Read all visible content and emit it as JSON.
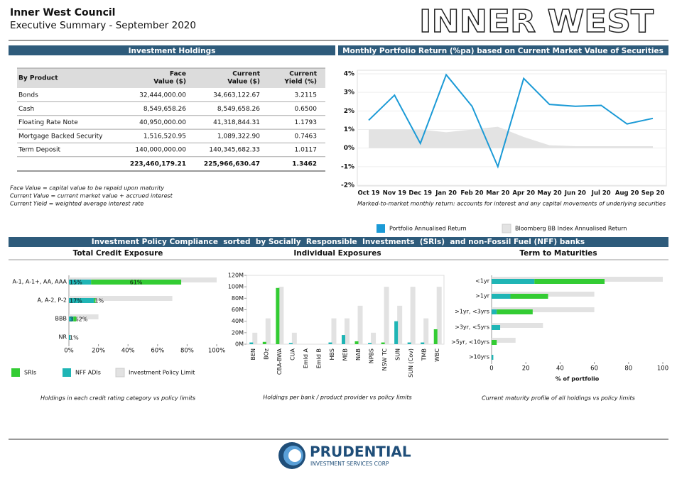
{
  "header": {
    "title": "Inner West Council",
    "subtitle": "Executive Summary - September 2020",
    "logo": "INNER WEST"
  },
  "table": {
    "title": "Investment Holdings",
    "columns": [
      [
        "By Product"
      ],
      [
        "Face",
        "Value ($)"
      ],
      [
        "Current",
        "Value ($)"
      ],
      [
        "Current",
        "Yield (%)"
      ]
    ],
    "rows": [
      [
        "Bonds",
        "32,444,000.00",
        "34,663,122.67",
        "3.2115"
      ],
      [
        "Cash",
        "8,549,658.26",
        "8,549,658.26",
        "0.6500"
      ],
      [
        "Floating Rate Note",
        "40,950,000.00",
        "41,318,844.31",
        "1.1793"
      ],
      [
        "Mortgage Backed Security",
        "1,516,520.95",
        "1,089,322.90",
        "0.7463"
      ],
      [
        "Term Deposit",
        "140,000,000.00",
        "140,345,682.33",
        "1.0117"
      ]
    ],
    "total": [
      "223,460,179.21",
      "225,966,630.47",
      "1.3462"
    ]
  },
  "notes": [
    "Face Value = capital value to be repaid upon maturity",
    "Current Value = current market value + accrued interest",
    "Current Yield = weighted average interest rate"
  ],
  "compliance_title": "Investment Policy Compliance  sorted  by Socially  Responsible  Investments  (SRIs)  and non-Fossil Fuel (NFF) banks",
  "chart_data": [
    {
      "type": "line",
      "title": "Monthly Portfolio Return (%pa) based on Current Market Value of Securities",
      "categories": [
        "Oct 19",
        "Nov 19",
        "Dec 19",
        "Jan 20",
        "Feb 20",
        "Mar 20",
        "Apr 20",
        "May 20",
        "Jun 20",
        "Jul 20",
        "Aug 20",
        "Sep 20"
      ],
      "series": [
        {
          "name": "Portfolio Annualised Return",
          "color": "#1b9ad6",
          "values": [
            1.5,
            2.85,
            0.25,
            3.95,
            2.25,
            -1.0,
            3.75,
            2.35,
            2.25,
            2.3,
            1.3,
            1.6
          ]
        },
        {
          "name": "Bloomberg BB Index Annualised Return",
          "color": "#e3e3e3",
          "type": "area",
          "values": [
            1.0,
            1.0,
            1.0,
            0.85,
            1.0,
            1.15,
            0.6,
            0.15,
            0.1,
            0.1,
            0.1,
            0.1
          ]
        }
      ],
      "ylim": [
        -2,
        4
      ],
      "yticks": [
        {
          "value": -2,
          "label": "-2%"
        },
        {
          "value": -1,
          "label": "-1%"
        },
        {
          "value": 0,
          "label": "0%"
        },
        {
          "value": 1,
          "label": "1%"
        },
        {
          "value": 2,
          "label": "2%"
        },
        {
          "value": 3,
          "label": "3%"
        },
        {
          "value": 4,
          "label": "4%"
        }
      ],
      "grid": true,
      "caption": "Marked-to-market monthly return: accounts for interest and any capital movements of underlying securities"
    },
    {
      "type": "bar",
      "orientation": "horizontal",
      "title": "Total Credit Exposure",
      "categories": [
        "A-1, A-1+, AA, AAA",
        "A, A-2, P-2",
        "BBB",
        "NR"
      ],
      "series": [
        {
          "name": "SRIs",
          "color": "#33cc33",
          "values": [
            61,
            1,
            2,
            null
          ],
          "value_labels": [
            "61%",
            "1%",
            "2%",
            null
          ]
        },
        {
          "name": "NFF ADIs",
          "color": "#1fb5b5",
          "values": [
            15,
            17,
            3,
            1
          ],
          "value_labels": [
            "15%",
            "17%",
            "3%",
            "1%"
          ]
        },
        {
          "name": "Investment Policy Limit",
          "color": "#e2e2e2",
          "role": "limit",
          "values": [
            100,
            70,
            20,
            null
          ]
        }
      ],
      "xlim": [
        0,
        100
      ],
      "xticks": [
        {
          "value": 0,
          "label": "0%"
        },
        {
          "value": 20,
          "label": "20%"
        },
        {
          "value": 40,
          "label": "40%"
        },
        {
          "value": 60,
          "label": "60%"
        },
        {
          "value": 80,
          "label": "80%"
        },
        {
          "value": 100,
          "label": "100%"
        }
      ],
      "caption": "Holdings in each credit rating category vs policy limits"
    },
    {
      "type": "bar",
      "orientation": "vertical",
      "title": "Individual Exposures",
      "categories": [
        "BEN",
        "BOz",
        "CBA-BWA",
        "CUA",
        "Emld A",
        "Emld B",
        "HBS",
        "MEB",
        "NAB",
        "NPBS",
        "NSW TC",
        "SUN",
        "SUN (Cov)",
        "TMB",
        "WBC"
      ],
      "series": [
        {
          "color": "#33cc33",
          "values": [
            null,
            4,
            98,
            null,
            null,
            null,
            null,
            null,
            5,
            null,
            3,
            null,
            null,
            null,
            26
          ]
        },
        {
          "color": "#1fb5b5",
          "values": [
            3,
            null,
            null,
            2,
            null,
            null,
            3,
            16,
            null,
            2,
            null,
            40,
            3,
            3,
            null
          ]
        },
        {
          "color": "#e2e2e2",
          "role": "limit",
          "values": [
            20,
            45,
            100,
            20,
            null,
            null,
            45,
            45,
            67,
            20,
            100,
            67,
            100,
            45,
            100
          ]
        }
      ],
      "ylim": [
        0,
        120
      ],
      "yticks": [
        {
          "value": 0,
          "label": "0M"
        },
        {
          "value": 20,
          "label": "20M"
        },
        {
          "value": 40,
          "label": "40M"
        },
        {
          "value": 60,
          "label": "60M"
        },
        {
          "value": 80,
          "label": "80M"
        },
        {
          "value": 100,
          "label": "100M"
        },
        {
          "value": 120,
          "label": "120M"
        }
      ],
      "caption": "Holdings per bank / product provider vs policy limits"
    },
    {
      "type": "bar",
      "orientation": "horizontal",
      "title": "Term to Maturities",
      "categories": [
        "<1yr",
        ">1yr",
        ">1yr, <3yrs",
        ">3yr, <5yrs",
        ">5yr, <10yrs",
        ">10yrs"
      ],
      "series": [
        {
          "color": "#33cc33",
          "values": [
            41,
            22,
            21,
            null,
            3,
            null
          ]
        },
        {
          "color": "#1fb5b5",
          "values": [
            25,
            11,
            3,
            5,
            null,
            1
          ]
        },
        {
          "color": "#e2e2e2",
          "role": "limit",
          "values": [
            100,
            60,
            60,
            30,
            14,
            null
          ]
        }
      ],
      "xlim": [
        0,
        100
      ],
      "xticks": [
        0,
        20,
        40,
        60,
        80,
        100
      ],
      "xlabel": "% of portfolio",
      "caption": "Current maturity profile of all holdings vs policy limits"
    }
  ],
  "footer": {
    "brand": "PRUDENTIAL",
    "tagline": "INVESTMENT SERVICES CORP"
  }
}
